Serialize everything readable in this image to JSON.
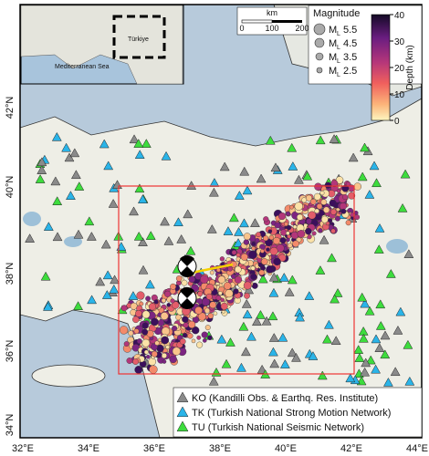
{
  "map": {
    "lat_labels": [
      "42°N",
      "40°N",
      "38°N",
      "36°N",
      "34°N"
    ],
    "lon_labels": [
      "32°E",
      "34°E",
      "36°E",
      "38°E",
      "40°E",
      "42°E",
      "44°E"
    ]
  },
  "inset": {
    "sea": "Mediterranean Sea",
    "country": "Türkiye"
  },
  "scale_bar": {
    "unit": "km",
    "ticks": [
      "0",
      "100",
      "200"
    ]
  },
  "magnitude_legend": {
    "title": "Magnitude",
    "items": [
      {
        "symbol": "M",
        "sub": "L",
        "value": "5.5"
      },
      {
        "symbol": "M",
        "sub": "L",
        "value": "4.5"
      },
      {
        "symbol": "M",
        "sub": "L",
        "value": "3.5"
      },
      {
        "symbol": "M",
        "sub": "L",
        "value": "2.5"
      }
    ]
  },
  "depth_colorbar": {
    "label": "Depth (km)",
    "ticks": [
      "40",
      "30",
      "20",
      "10",
      "0"
    ]
  },
  "station_legend": [
    {
      "code": "KO",
      "description": "(Kandilli Obs. & Earthq. Res. Institute)",
      "color": "#8a8a8a"
    },
    {
      "code": "TK",
      "description": "(Turkish National Strong Motion Network)",
      "color": "#2ab4e8"
    },
    {
      "code": "TU",
      "description": "(Turkish National Seismic Network)",
      "color": "#3ddc3d"
    }
  ]
}
